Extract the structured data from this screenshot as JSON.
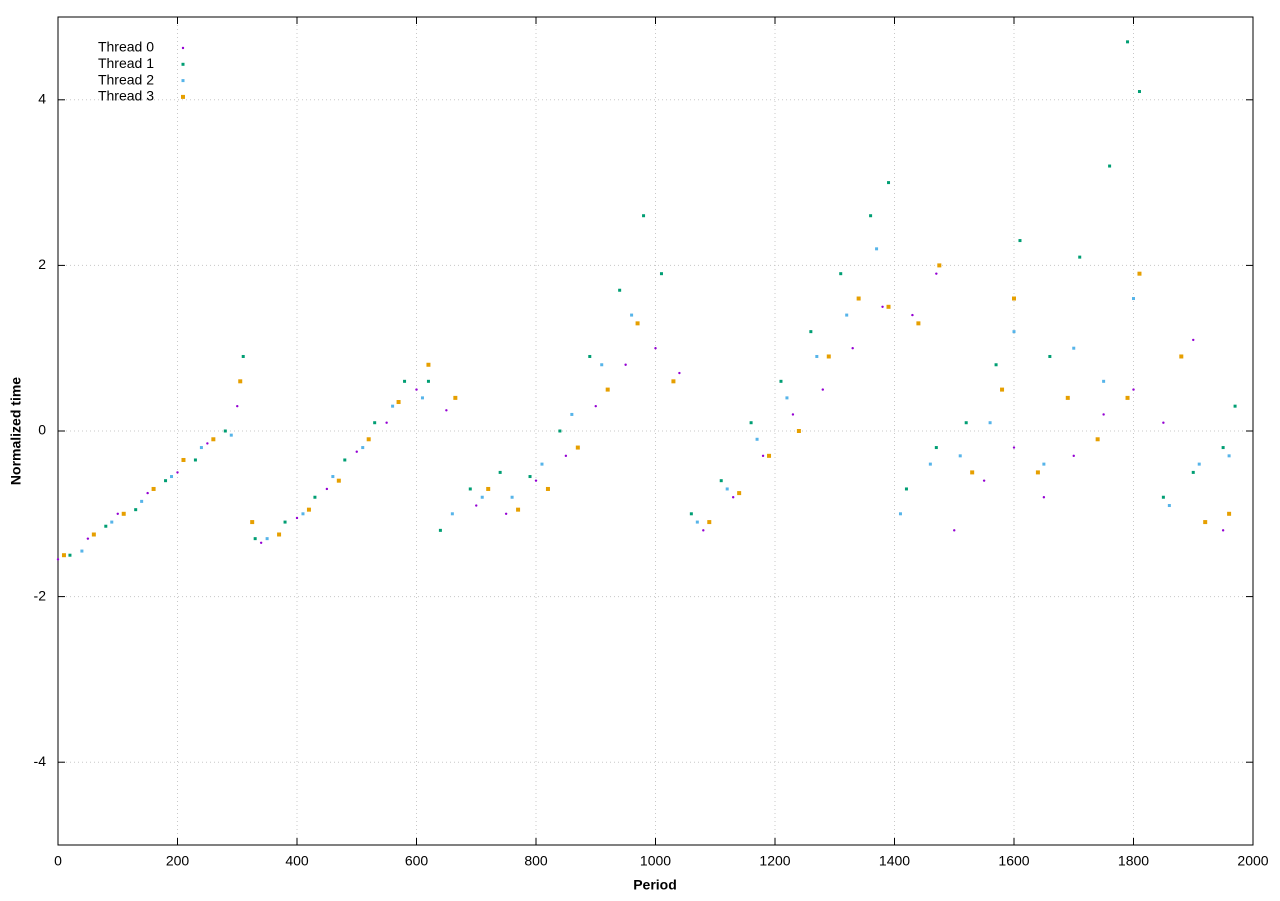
{
  "chart_data": {
    "type": "scatter",
    "x_label": "Period",
    "y_label": "Normalized time",
    "xlim": [
      0,
      2000
    ],
    "ylim": [
      -5,
      5
    ],
    "xticks": [
      0,
      200,
      400,
      600,
      800,
      1000,
      1200,
      1400,
      1600,
      1800,
      2000
    ],
    "yticks": [
      -4,
      -2,
      0,
      2,
      4
    ],
    "grid": true,
    "legend": "upper-left",
    "series": [
      {
        "name": "Thread 0",
        "color": "#9400d3",
        "x": [
          0,
          50,
          100,
          150,
          200,
          250,
          300,
          340,
          400,
          450,
          500,
          550,
          600,
          650,
          700,
          750,
          800,
          850,
          900,
          950,
          1000,
          1040,
          1080,
          1130,
          1180,
          1230,
          1280,
          1330,
          1380,
          1430,
          1470,
          1500,
          1550,
          1600,
          1650,
          1700,
          1750,
          1800,
          1850,
          1900,
          1950
        ],
        "values": [
          -1.55,
          -1.3,
          -1.0,
          -0.75,
          -0.5,
          -0.15,
          0.3,
          -1.35,
          -1.05,
          -0.7,
          -0.25,
          0.1,
          0.5,
          0.25,
          -0.9,
          -1.0,
          -0.6,
          -0.3,
          0.3,
          0.8,
          1.0,
          0.7,
          -1.2,
          -0.8,
          -0.3,
          0.2,
          0.5,
          1.0,
          1.5,
          1.4,
          1.9,
          -1.2,
          -0.6,
          -0.2,
          -0.8,
          -0.3,
          0.2,
          0.5,
          0.1,
          1.1,
          -1.2
        ]
      },
      {
        "name": "Thread 1",
        "color": "#009e73",
        "x": [
          20,
          80,
          130,
          180,
          230,
          280,
          310,
          330,
          380,
          430,
          480,
          530,
          580,
          620,
          640,
          690,
          740,
          790,
          840,
          890,
          940,
          980,
          1010,
          1060,
          1110,
          1160,
          1210,
          1260,
          1310,
          1360,
          1390,
          1420,
          1470,
          1520,
          1570,
          1610,
          1660,
          1710,
          1760,
          1790,
          1810,
          1850,
          1900,
          1950,
          1970
        ],
        "values": [
          -1.5,
          -1.15,
          -0.95,
          -0.6,
          -0.35,
          0.0,
          0.9,
          -1.3,
          -1.1,
          -0.8,
          -0.35,
          0.1,
          0.6,
          0.6,
          -1.2,
          -0.7,
          -0.5,
          -0.55,
          0.0,
          0.9,
          1.7,
          2.6,
          1.9,
          -1.0,
          -0.6,
          0.1,
          0.6,
          1.2,
          1.9,
          2.6,
          3.0,
          -0.7,
          -0.2,
          0.1,
          0.8,
          2.3,
          0.9,
          2.1,
          3.2,
          4.7,
          4.1,
          -0.8,
          -0.5,
          -0.2,
          0.3
        ]
      },
      {
        "name": "Thread 2",
        "color": "#56b4e9",
        "x": [
          40,
          90,
          140,
          190,
          240,
          290,
          350,
          410,
          460,
          510,
          560,
          610,
          660,
          710,
          760,
          810,
          860,
          910,
          960,
          1070,
          1120,
          1170,
          1220,
          1270,
          1320,
          1370,
          1410,
          1460,
          1510,
          1560,
          1600,
          1650,
          1700,
          1750,
          1800,
          1860,
          1910,
          1960
        ],
        "values": [
          -1.45,
          -1.1,
          -0.85,
          -0.55,
          -0.2,
          -0.05,
          -1.3,
          -1.0,
          -0.55,
          -0.2,
          0.3,
          0.4,
          -1.0,
          -0.8,
          -0.8,
          -0.4,
          0.2,
          0.8,
          1.4,
          -1.1,
          -0.7,
          -0.1,
          0.4,
          0.9,
          1.4,
          2.2,
          -1.0,
          -0.4,
          -0.3,
          0.1,
          1.2,
          -0.4,
          1.0,
          0.6,
          1.6,
          -0.9,
          -0.4,
          -0.3
        ]
      },
      {
        "name": "Thread 3",
        "color": "#e69f00",
        "x": [
          10,
          60,
          110,
          160,
          210,
          260,
          305,
          325,
          370,
          420,
          470,
          520,
          570,
          620,
          665,
          720,
          770,
          820,
          870,
          920,
          970,
          1030,
          1090,
          1140,
          1190,
          1240,
          1290,
          1340,
          1390,
          1440,
          1475,
          1530,
          1580,
          1600,
          1640,
          1690,
          1740,
          1790,
          1810,
          1880,
          1920,
          1960
        ],
        "values": [
          -1.5,
          -1.25,
          -1.0,
          -0.7,
          -0.35,
          -0.1,
          0.6,
          -1.1,
          -1.25,
          -0.95,
          -0.6,
          -0.1,
          0.35,
          0.8,
          0.4,
          -0.7,
          -0.95,
          -0.7,
          -0.2,
          0.5,
          1.3,
          0.6,
          -1.1,
          -0.75,
          -0.3,
          0.0,
          0.9,
          1.6,
          1.5,
          1.3,
          2.0,
          -0.5,
          0.5,
          1.6,
          -0.5,
          0.4,
          -0.1,
          0.4,
          1.9,
          0.9,
          -1.1,
          -1.0
        ]
      }
    ]
  }
}
